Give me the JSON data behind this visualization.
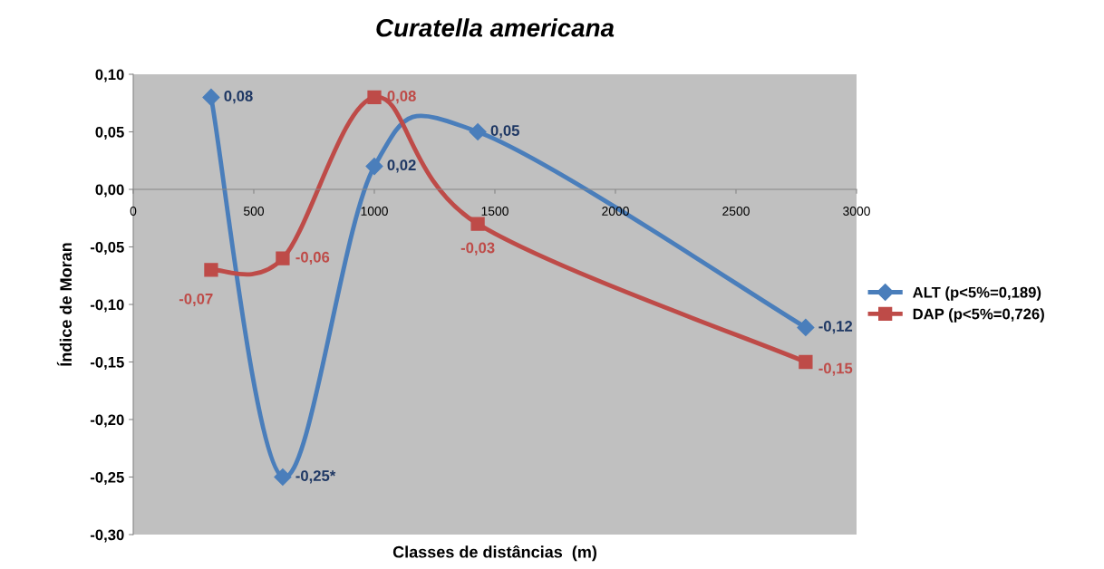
{
  "chart_data": {
    "type": "line",
    "title": "Curatella americana",
    "xlabel": "Classes de distâncias  (m)",
    "ylabel": "Índice de Moran",
    "x": [
      323,
      620,
      1000,
      1429,
      2789
    ],
    "series": [
      {
        "name": "ALT (p<5%=0,189)",
        "color": "#4a7ebb",
        "marker": "diamond",
        "values": [
          0.08,
          -0.25,
          0.02,
          0.05,
          -0.12
        ],
        "value_labels": [
          "0,08",
          "-0,25*",
          "0,02",
          "0,05",
          "-0,12"
        ]
      },
      {
        "name": "DAP (p<5%=0,726)",
        "color": "#be4b48",
        "marker": "square",
        "values": [
          -0.07,
          -0.06,
          0.08,
          -0.03,
          -0.15
        ],
        "value_labels": [
          "-0,07",
          "-0,06",
          "0,08",
          "-0,03",
          "-0,15"
        ]
      }
    ],
    "xlim": [
      0,
      3000
    ],
    "xticks": [
      0,
      500,
      1000,
      1500,
      2000,
      2500,
      3000
    ],
    "ylim": [
      -0.3,
      0.1
    ],
    "yticks": [
      {
        "value": -0.3,
        "label": "-0,30"
      },
      {
        "value": -0.25,
        "label": "-0,25"
      },
      {
        "value": -0.2,
        "label": "-0,20"
      },
      {
        "value": -0.15,
        "label": "-0,15"
      },
      {
        "value": -0.1,
        "label": "-0,10"
      },
      {
        "value": -0.05,
        "label": "-0,05"
      },
      {
        "value": 0,
        "label": "0,00"
      },
      {
        "value": 0.05,
        "label": "0,05"
      },
      {
        "value": 0.1,
        "label": "0,10"
      }
    ],
    "grid": false,
    "legend": "right",
    "line_style": "solid"
  }
}
